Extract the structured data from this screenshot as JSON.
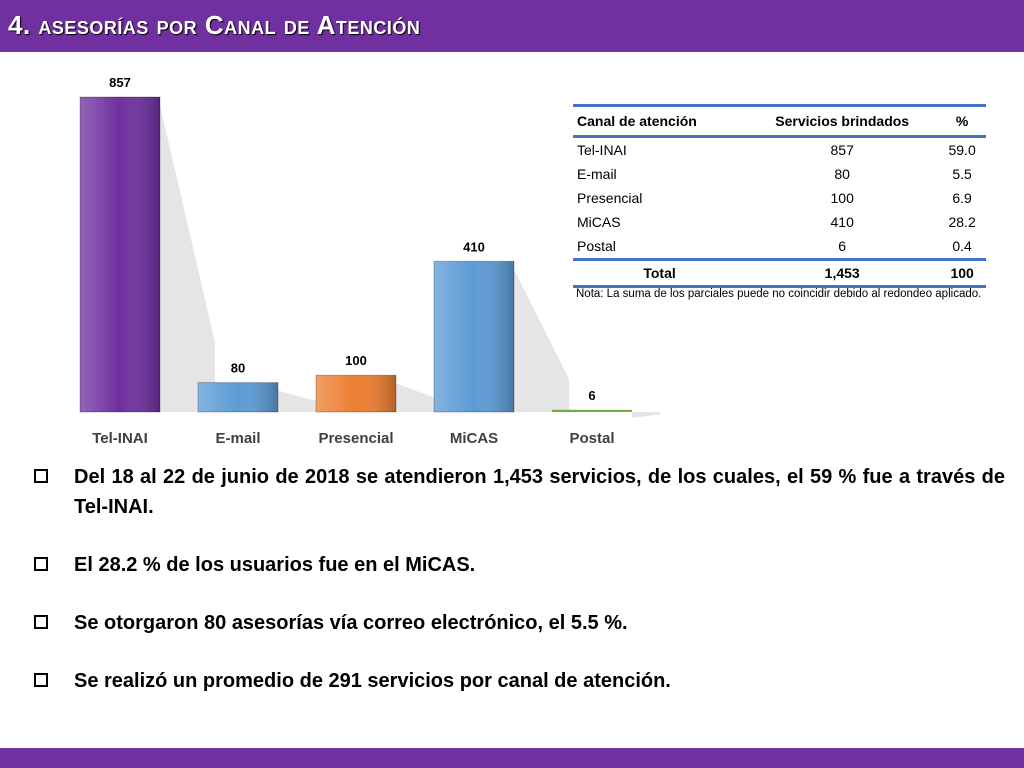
{
  "header": {
    "title": "4. asesorías por Canal de Atención"
  },
  "colors": {
    "brand": "#7030a0",
    "tel_inai": "#7030a0",
    "email": "#5b9bd5",
    "presencial": "#ed7d31",
    "micas": "#5b9bd5",
    "postal": "#70ad47",
    "table_rule": "#4472c4"
  },
  "chart_data": {
    "type": "bar",
    "categories": [
      "Tel-INAI",
      "E-mail",
      "Presencial",
      "MiCAS",
      "Postal"
    ],
    "values": [
      857,
      80,
      100,
      410,
      6
    ],
    "data_labels": [
      "857",
      "80",
      "100",
      "410",
      "6"
    ],
    "colors": [
      "#7030a0",
      "#5b9bd5",
      "#ed7d31",
      "#5b9bd5",
      "#70ad47"
    ],
    "ylim": [
      0,
      857
    ],
    "grid": false,
    "legend": "none"
  },
  "table": {
    "headers": [
      "Canal de atención",
      "Servicios brindados",
      "%"
    ],
    "rows": [
      [
        "Tel-INAI",
        "857",
        "59.0"
      ],
      [
        "E-mail",
        "80",
        "5.5"
      ],
      [
        "Presencial",
        "100",
        "6.9"
      ],
      [
        "MiCAS",
        "410",
        "28.2"
      ],
      [
        "Postal",
        "6",
        "0.4"
      ]
    ],
    "total": [
      "Total",
      "1,453",
      "100"
    ],
    "note": "Nota: La suma de los parciales puede no coincidir debido al redondeo aplicado."
  },
  "bullets": [
    "Del 18 al 22 de junio de 2018 se atendieron 1,453 servicios, de los cuales, el 59 % fue a través de Tel-INAI.",
    "El 28.2 % de los usuarios fue en el MiCAS.",
    "Se otorgaron 80 asesorías vía correo electrónico, el 5.5 %.",
    "Se realizó un promedio de 291 servicios por canal de atención."
  ]
}
